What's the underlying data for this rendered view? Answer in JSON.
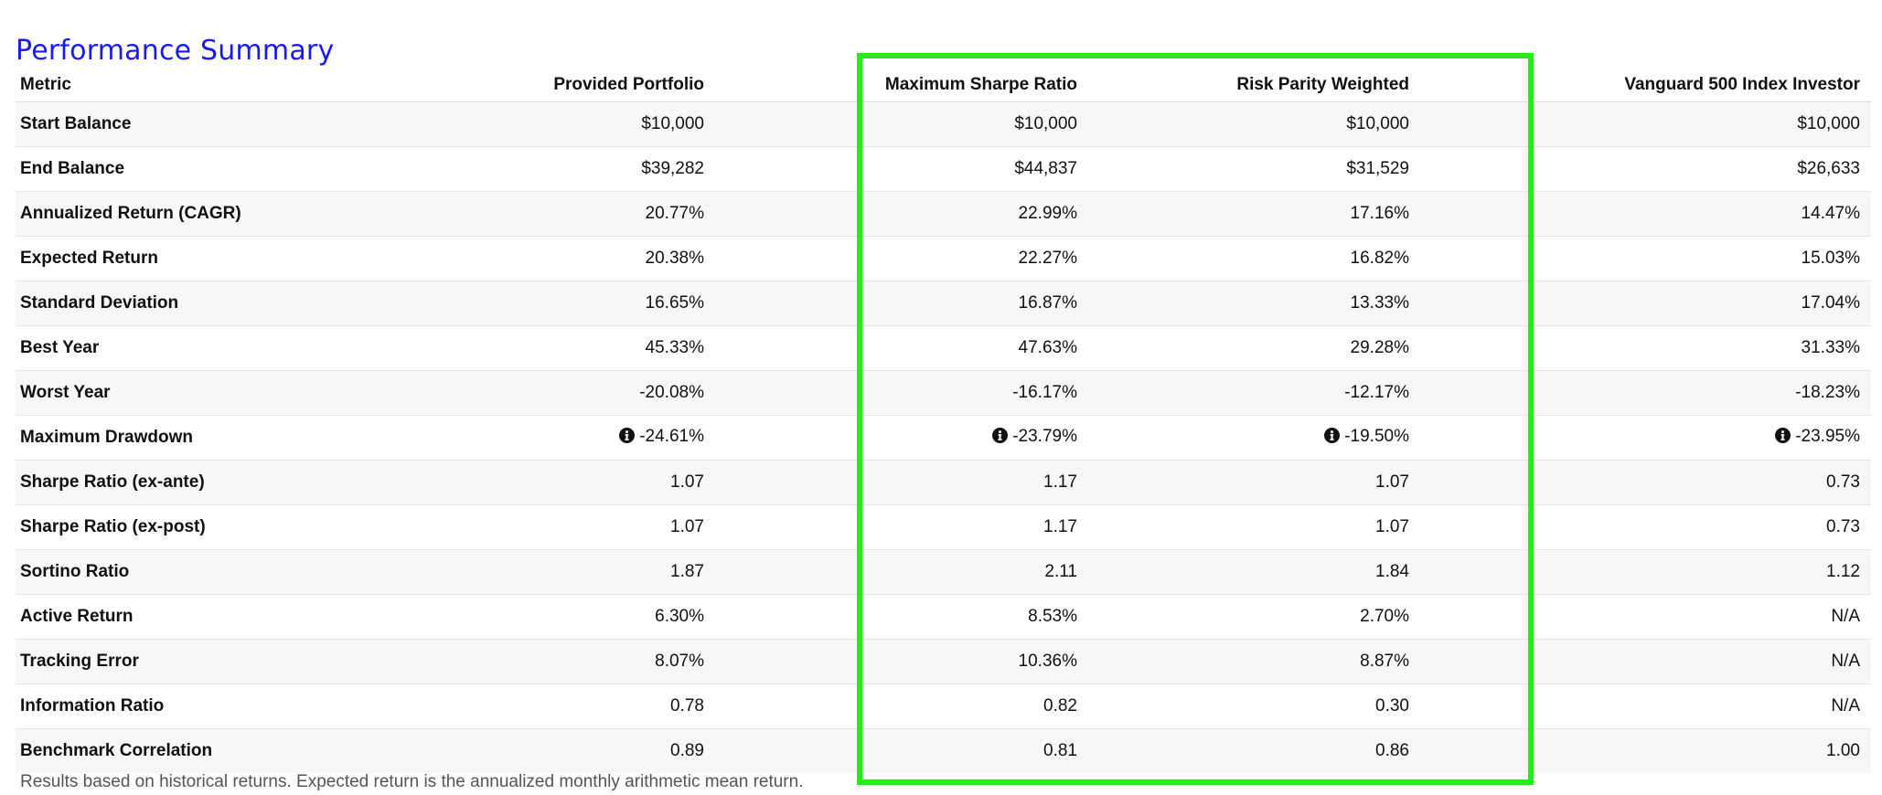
{
  "title": "Performance Summary",
  "columns": [
    "Metric",
    "Provided Portfolio",
    "Maximum Sharpe Ratio",
    "Risk Parity Weighted",
    "Vanguard 500 Index Investor"
  ],
  "rows": [
    {
      "metric": "Start Balance",
      "values": [
        "$10,000",
        "$10,000",
        "$10,000",
        "$10,000"
      ],
      "info": false
    },
    {
      "metric": "End Balance",
      "values": [
        "$39,282",
        "$44,837",
        "$31,529",
        "$26,633"
      ],
      "info": false
    },
    {
      "metric": "Annualized Return (CAGR)",
      "values": [
        "20.77%",
        "22.99%",
        "17.16%",
        "14.47%"
      ],
      "info": false
    },
    {
      "metric": "Expected Return",
      "values": [
        "20.38%",
        "22.27%",
        "16.82%",
        "15.03%"
      ],
      "info": false
    },
    {
      "metric": "Standard Deviation",
      "values": [
        "16.65%",
        "16.87%",
        "13.33%",
        "17.04%"
      ],
      "info": false
    },
    {
      "metric": "Best Year",
      "values": [
        "45.33%",
        "47.63%",
        "29.28%",
        "31.33%"
      ],
      "info": false
    },
    {
      "metric": "Worst Year",
      "values": [
        "-20.08%",
        "-16.17%",
        "-12.17%",
        "-18.23%"
      ],
      "info": false
    },
    {
      "metric": "Maximum Drawdown",
      "values": [
        "-24.61%",
        "-23.79%",
        "-19.50%",
        "-23.95%"
      ],
      "info": true
    },
    {
      "metric": "Sharpe Ratio (ex-ante)",
      "values": [
        "1.07",
        "1.17",
        "1.07",
        "0.73"
      ],
      "info": false
    },
    {
      "metric": "Sharpe Ratio (ex-post)",
      "values": [
        "1.07",
        "1.17",
        "1.07",
        "0.73"
      ],
      "info": false
    },
    {
      "metric": "Sortino Ratio",
      "values": [
        "1.87",
        "2.11",
        "1.84",
        "1.12"
      ],
      "info": false
    },
    {
      "metric": "Active Return",
      "values": [
        "6.30%",
        "8.53%",
        "2.70%",
        "N/A"
      ],
      "info": false
    },
    {
      "metric": "Tracking Error",
      "values": [
        "8.07%",
        "10.36%",
        "8.87%",
        "N/A"
      ],
      "info": false
    },
    {
      "metric": "Information Ratio",
      "values": [
        "0.78",
        "0.82",
        "0.30",
        "N/A"
      ],
      "info": false
    },
    {
      "metric": "Benchmark Correlation",
      "values": [
        "0.89",
        "0.81",
        "0.86",
        "1.00"
      ],
      "info": false
    }
  ],
  "footnote": "Results based on historical returns. Expected return is the annualized monthly arithmetic mean return.",
  "colors": {
    "title": "#1a1af0",
    "highlight": "#22ee11",
    "row_stripe": "#f7f7f7"
  },
  "icons": {
    "drawdown_info": "info-circle-icon"
  }
}
